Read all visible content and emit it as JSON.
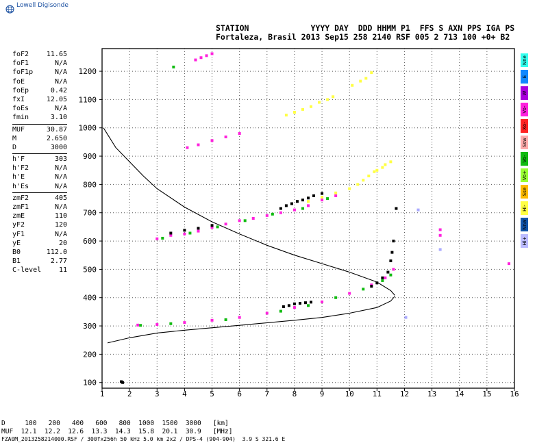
{
  "logo": {
    "text": "Lowell Digisonde"
  },
  "header": {
    "line1": "STATION             YYYY DAY  DDD HHMM P1  FFS S AXN PPS IGA PS",
    "line2": "Fortaleza, Brasil 2013 Sep15 258 2140 RSF 005 2 713 100 +0+ B2"
  },
  "params": [
    [
      {
        "k": "foF2",
        "v": "11.65"
      },
      {
        "k": "foF1",
        "v": "N/A"
      },
      {
        "k": "foF1p",
        "v": "N/A"
      },
      {
        "k": "foE",
        "v": "N/A"
      },
      {
        "k": "foEp",
        "v": "0.42"
      },
      {
        "k": "fxI",
        "v": "12.05"
      },
      {
        "k": "foEs",
        "v": "N/A"
      },
      {
        "k": "fmin",
        "v": "3.10"
      }
    ],
    [
      {
        "k": "MUF",
        "v": "30.87"
      },
      {
        "k": "M",
        "v": "2.650"
      },
      {
        "k": "D",
        "v": "3000"
      }
    ],
    [
      {
        "k": "h'F",
        "v": "303"
      },
      {
        "k": "h'F2",
        "v": "N/A"
      },
      {
        "k": "h'E",
        "v": "N/A"
      },
      {
        "k": "h'Es",
        "v": "N/A"
      }
    ],
    [
      {
        "k": "zmF2",
        "v": "405"
      },
      {
        "k": "zmF1",
        "v": "N/A"
      },
      {
        "k": "zmE",
        "v": "110"
      },
      {
        "k": "yF2",
        "v": "120"
      },
      {
        "k": "yF1",
        "v": "N/A"
      },
      {
        "k": "yE",
        "v": "20"
      },
      {
        "k": "B0",
        "v": "112.0"
      },
      {
        "k": "B1",
        "v": "2.77"
      },
      {
        "k": "C-level",
        "v": "11"
      }
    ]
  ],
  "legend": [
    {
      "label": "Nne",
      "color": "#33ffee"
    },
    {
      "label": "E",
      "color": "#1188ff"
    },
    {
      "label": "W",
      "color": "#aa00dd"
    },
    {
      "label": "Vo-",
      "color": "#ff22dd"
    },
    {
      "label": "Xo-",
      "color": "#ff2222"
    },
    {
      "label": "Ssw",
      "color": "#ffaaaa"
    },
    {
      "label": "Vo-",
      "color": "#11bb11"
    },
    {
      "label": "Vo+",
      "color": "#99ff33"
    },
    {
      "label": "Sse",
      "color": "#ffbb00"
    },
    {
      "label": "Hi-",
      "color": "#ffff44"
    },
    {
      "label": "Nnw",
      "color": "#1155aa"
    },
    {
      "label": "Hi+",
      "color": "#bbbbff"
    }
  ],
  "muf_table": {
    "line1": "D     100   200   400   600   800  1000  1500  3000   [km]",
    "line2": "MUF  12.1  12.2  12.6  13.3  14.3  15.8  20.1  30.9   [MHz]"
  },
  "footer": "FZA0M_2013258214000.RSF / 300fx256h 50 kHz 5.0 km 2x2 / DPS-4 (904-904)  3.9 S 321.6 E",
  "chart_data": {
    "type": "scatter",
    "xlim": [
      1,
      16
    ],
    "ylim": [
      80,
      1280
    ],
    "x_ticks": [
      1,
      2,
      3,
      4,
      5,
      6,
      7,
      8,
      9,
      10,
      11,
      12,
      13,
      14,
      15,
      16
    ],
    "y_ticks": [
      100,
      200,
      300,
      400,
      500,
      600,
      700,
      800,
      900,
      1000,
      1100,
      1200
    ],
    "grid": true,
    "series": [
      {
        "color": "#ff22dd",
        "points": [
          [
            2.3,
            303
          ],
          [
            3,
            305
          ],
          [
            4,
            312
          ],
          [
            5,
            320
          ],
          [
            6,
            330
          ],
          [
            7,
            345
          ],
          [
            8,
            365
          ],
          [
            9,
            385
          ],
          [
            10,
            415
          ],
          [
            10.8,
            445
          ],
          [
            11.3,
            470
          ],
          [
            11.6,
            500
          ]
        ]
      },
      {
        "color": "#11bb11",
        "points": [
          [
            2.4,
            302
          ],
          [
            3.5,
            308
          ],
          [
            5.5,
            322
          ],
          [
            7.5,
            352
          ],
          [
            8.5,
            372
          ],
          [
            9.5,
            400
          ],
          [
            10.5,
            430
          ],
          [
            11.2,
            460
          ],
          [
            11.5,
            480
          ]
        ]
      },
      {
        "color": "#000000",
        "points": [
          [
            7.6,
            368
          ],
          [
            7.8,
            372
          ],
          [
            8,
            378
          ],
          [
            8.2,
            380
          ],
          [
            8.4,
            382
          ],
          [
            8.6,
            384
          ],
          [
            10.8,
            440
          ],
          [
            11,
            452
          ],
          [
            11.2,
            470
          ],
          [
            11.4,
            490
          ],
          [
            11.5,
            530
          ],
          [
            11.55,
            560
          ],
          [
            11.6,
            600
          ]
        ]
      },
      {
        "color": "#ff22dd",
        "points": [
          [
            3,
            608
          ],
          [
            3.5,
            620
          ],
          [
            4,
            625
          ],
          [
            4.5,
            635
          ],
          [
            5,
            648
          ],
          [
            5.5,
            660
          ],
          [
            6,
            672
          ],
          [
            6.5,
            680
          ],
          [
            7,
            690
          ],
          [
            7.5,
            700
          ],
          [
            8,
            710
          ],
          [
            8.5,
            725
          ],
          [
            9,
            745
          ],
          [
            9.5,
            760
          ]
        ]
      },
      {
        "color": "#11bb11",
        "points": [
          [
            3.2,
            610
          ],
          [
            4.2,
            628
          ],
          [
            5.2,
            650
          ],
          [
            6.2,
            672
          ],
          [
            7.2,
            695
          ],
          [
            8.3,
            715
          ],
          [
            9.2,
            750
          ]
        ]
      },
      {
        "color": "#000000",
        "points": [
          [
            3.5,
            628
          ],
          [
            4,
            638
          ],
          [
            4.5,
            645
          ],
          [
            5,
            655
          ],
          [
            7.5,
            715
          ],
          [
            7.7,
            725
          ],
          [
            7.9,
            732
          ],
          [
            8.1,
            740
          ],
          [
            8.3,
            745
          ],
          [
            8.5,
            752
          ],
          [
            8.7,
            760
          ],
          [
            9,
            768
          ]
        ]
      },
      {
        "color": "#ffff44",
        "points": [
          [
            8.5,
            740
          ],
          [
            9,
            755
          ],
          [
            9.5,
            770
          ],
          [
            10,
            785
          ],
          [
            10.3,
            800
          ],
          [
            10.5,
            815
          ],
          [
            10.7,
            830
          ],
          [
            10.9,
            845
          ],
          [
            11,
            850
          ],
          [
            11.2,
            860
          ],
          [
            11.3,
            870
          ],
          [
            11.5,
            880
          ]
        ]
      },
      {
        "color": "#ff22dd",
        "points": [
          [
            4.1,
            930
          ],
          [
            4.5,
            940
          ],
          [
            5,
            955
          ],
          [
            5.5,
            968
          ],
          [
            6,
            980
          ]
        ]
      },
      {
        "color": "#ffff44",
        "points": [
          [
            7.7,
            1045
          ],
          [
            8,
            1055
          ],
          [
            8.3,
            1065
          ],
          [
            8.6,
            1075
          ],
          [
            8.9,
            1090
          ],
          [
            9.2,
            1100
          ],
          [
            9.4,
            1110
          ]
        ]
      },
      {
        "color": "#ffff44",
        "points": [
          [
            10.1,
            1150
          ],
          [
            10.4,
            1165
          ],
          [
            10.6,
            1175
          ],
          [
            10.8,
            1195
          ]
        ]
      },
      {
        "color": "#ff22dd",
        "points": [
          [
            4.4,
            1240
          ],
          [
            4.6,
            1248
          ],
          [
            4.8,
            1255
          ],
          [
            5,
            1262
          ]
        ]
      },
      {
        "color": "#11bb11",
        "points": [
          [
            3.6,
            1215
          ]
        ]
      },
      {
        "color": "#ff22dd",
        "points": [
          [
            13.3,
            620
          ],
          [
            13.3,
            640
          ],
          [
            15.8,
            520
          ]
        ]
      },
      {
        "color": "#aaaaff",
        "points": [
          [
            13.3,
            570
          ],
          [
            12.5,
            710
          ],
          [
            12.05,
            330
          ]
        ]
      },
      {
        "color": "#000000",
        "points": [
          [
            1.75,
            100
          ],
          [
            1.7,
            103
          ],
          [
            11.7,
            715
          ]
        ]
      }
    ],
    "profile_upper": [
      [
        1.05,
        1000
      ],
      [
        1.5,
        930
      ],
      [
        2,
        880
      ],
      [
        2.5,
        830
      ],
      [
        3,
        785
      ],
      [
        4,
        720
      ],
      [
        5,
        668
      ],
      [
        6,
        625
      ],
      [
        7,
        585
      ],
      [
        8,
        550
      ],
      [
        9,
        520
      ],
      [
        10,
        490
      ],
      [
        11,
        455
      ],
      [
        11.5,
        425
      ],
      [
        11.65,
        408
      ]
    ],
    "profile_lower": [
      [
        11.65,
        405
      ],
      [
        11.5,
        388
      ],
      [
        11,
        365
      ],
      [
        10,
        345
      ],
      [
        9,
        330
      ],
      [
        8,
        320
      ],
      [
        6,
        302
      ],
      [
        4,
        285
      ],
      [
        3,
        275
      ],
      [
        2,
        258
      ],
      [
        1.2,
        240
      ]
    ]
  }
}
